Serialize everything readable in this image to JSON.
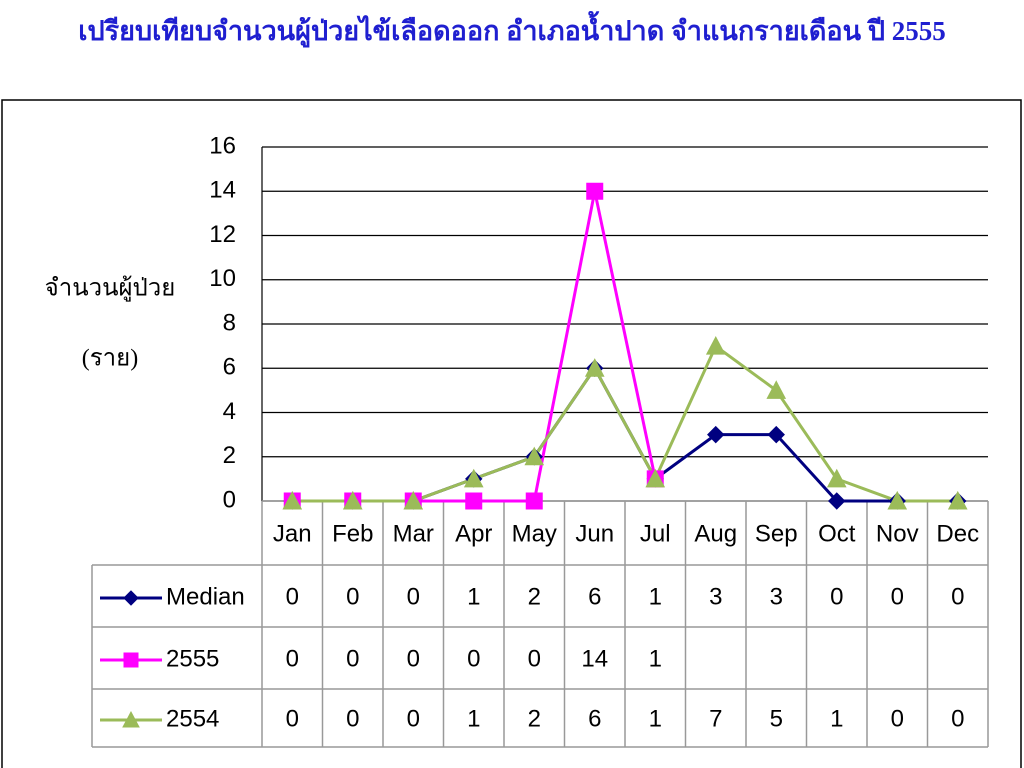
{
  "chart_data": {
    "type": "line",
    "title": "เปรียบเทียบจำนวนผู้ป่วยไข้เลือดออก อำเภอน้ำปาด จำแนกรายเดือน ปี 2555",
    "y_label": [
      "จำนวนผู้ป่วย",
      "(ราย)"
    ],
    "categories": [
      "Jan",
      "Feb",
      "Mar",
      "Apr",
      "May",
      "Jun",
      "Jul",
      "Aug",
      "Sep",
      "Oct",
      "Nov",
      "Dec"
    ],
    "series": [
      {
        "name": "Median",
        "color": "#000080",
        "marker": "diamond",
        "values": [
          0,
          0,
          0,
          1,
          2,
          6,
          1,
          3,
          3,
          0,
          0,
          0
        ]
      },
      {
        "name": "2555",
        "color": "#ff00ff",
        "marker": "square",
        "values": [
          0,
          0,
          0,
          0,
          0,
          14,
          1,
          null,
          null,
          null,
          null,
          null
        ]
      },
      {
        "name": "2554",
        "color": "#9bbb59",
        "marker": "triangle",
        "values": [
          0,
          0,
          0,
          1,
          2,
          6,
          1,
          7,
          5,
          1,
          0,
          0
        ]
      }
    ],
    "ylim": [
      0,
      16
    ],
    "yticks": [
      0,
      2,
      4,
      6,
      8,
      10,
      12,
      14,
      16
    ],
    "grid": true,
    "data_table": true
  }
}
